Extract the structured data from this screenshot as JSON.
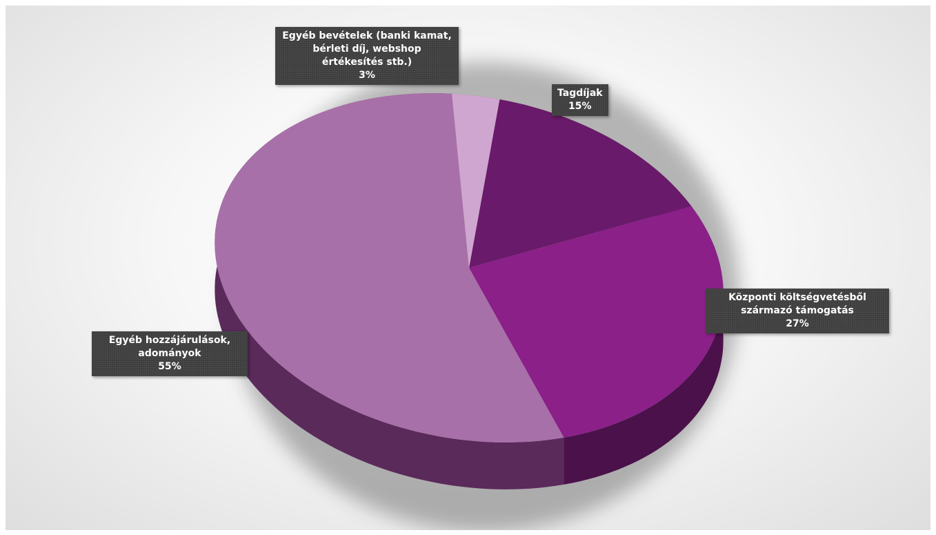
{
  "chart_data": {
    "type": "pie",
    "style": "3d",
    "legend": "none",
    "slices": [
      {
        "label": "Tagdíjak",
        "percent_label": "15%",
        "value": 15,
        "color": "#6a1a6a",
        "side_color": "#3d0e3d"
      },
      {
        "label": "Központi költségvetésből származó támogatás",
        "percent_label": "27%",
        "value": 27,
        "color": "#8a2088",
        "side_color": "#4a114a"
      },
      {
        "label": "Egyéb hozzájárulások, adományok",
        "percent_label": "55%",
        "value": 55,
        "color": "#a870a8",
        "side_color": "#5a2a5a"
      },
      {
        "label": "Egyéb bevételek (banki kamat, bérleti díj, webshop értékesítés stb.)",
        "percent_label": "3%",
        "value": 3,
        "color": "#cfa6cf",
        "side_color": "#7a557a"
      }
    ]
  }
}
